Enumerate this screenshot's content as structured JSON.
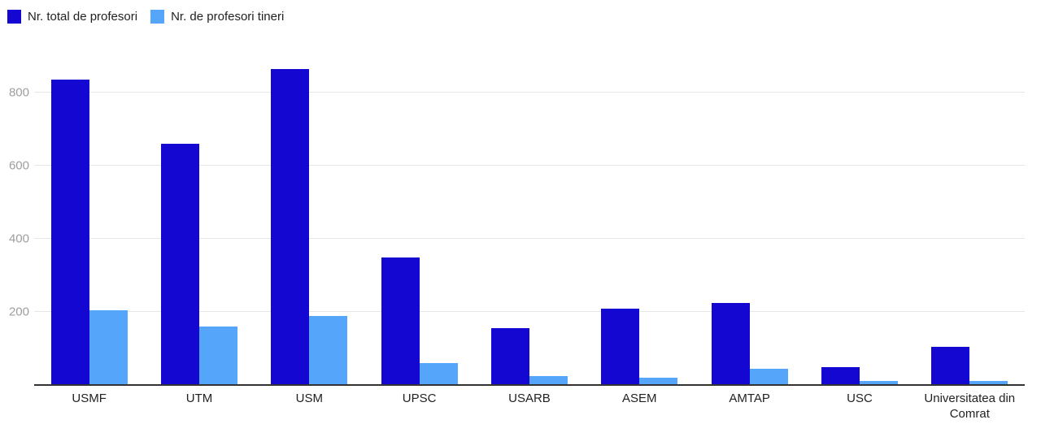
{
  "chart_data": {
    "type": "bar",
    "title": "",
    "xlabel": "",
    "ylabel": "",
    "categories": [
      "USMF",
      "UTM",
      "USM",
      "UPSC",
      "USARB",
      "ASEM",
      "AMTAP",
      "USC",
      "Universitatea din Comrat"
    ],
    "series": [
      {
        "name": "Nr. total de profesori",
        "color": "#1507D2",
        "values": [
          835,
          660,
          865,
          350,
          155,
          210,
          225,
          48,
          105
        ]
      },
      {
        "name": "Nr. de profesori tineri",
        "color": "#55A6FA",
        "values": [
          205,
          160,
          190,
          60,
          25,
          20,
          45,
          12,
          12
        ]
      }
    ],
    "ylim": [
      0,
      900
    ],
    "yticks": [
      200,
      400,
      600,
      800
    ],
    "grid": true,
    "legend_position": "top-left"
  },
  "colors": {
    "background": "#ffffff",
    "gridline": "#e6e6e6",
    "axis_line": "#333333",
    "y_tick_label": "#9e9e9e",
    "x_label": "#222222",
    "legend_text": "#222222"
  }
}
